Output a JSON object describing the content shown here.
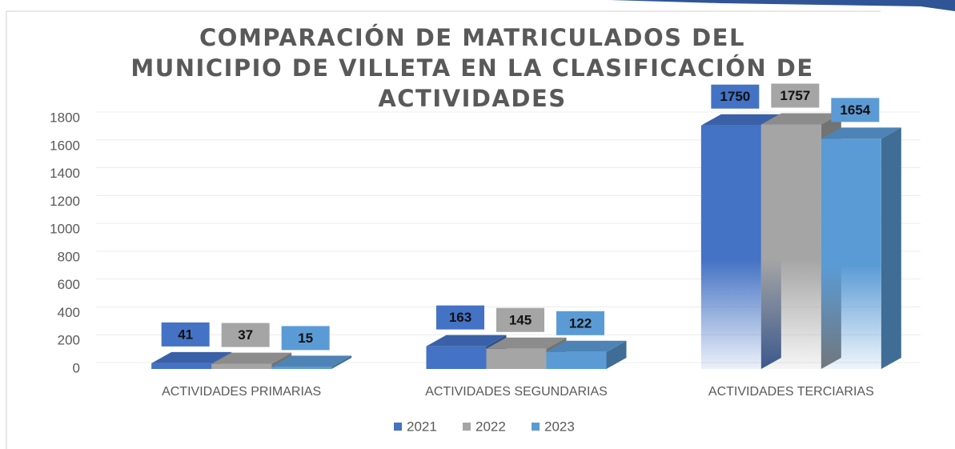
{
  "chart_data": {
    "type": "bar3d",
    "title": "COMPARACIÓN DE MATRICULADOS DEL MUNICIPIO DE VILLETA EN LA CLASIFICACIÓN DE ACTIVIDADES",
    "categories": [
      "ACTIVIDADES PRIMARIAS",
      "ACTIVIDADES SEGUNDARIAS",
      "ACTIVIDADES TERCIARIAS"
    ],
    "series": [
      {
        "name": "2021",
        "color": "#4472c4",
        "values": [
          41,
          163,
          1750
        ]
      },
      {
        "name": "2022",
        "color": "#a5a5a5",
        "values": [
          37,
          145,
          1757
        ]
      },
      {
        "name": "2023",
        "color": "#5b9bd5",
        "values": [
          15,
          122,
          1654
        ]
      }
    ],
    "ylim": [
      0,
      1800
    ],
    "yticks": [
      0,
      200,
      400,
      600,
      800,
      1000,
      1200,
      1400,
      1600,
      1800
    ],
    "grid": true,
    "legend": "bottom"
  }
}
